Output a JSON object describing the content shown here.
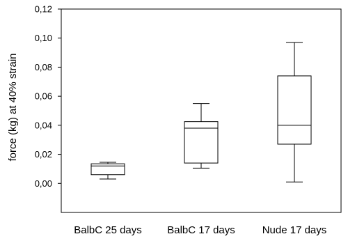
{
  "chart_data": {
    "type": "box",
    "title": "",
    "xlabel": "",
    "ylabel": "force (kg) at 40% strain",
    "ylim": [
      -0.02,
      0.12
    ],
    "yticks": [
      0.0,
      0.02,
      0.04,
      0.06,
      0.08,
      0.1,
      0.12
    ],
    "ytick_labels": [
      "0,00",
      "0,02",
      "0,04",
      "0,06",
      "0,08",
      "0,10",
      "0,12"
    ],
    "grid": false,
    "categories": [
      "BalbC 25 days",
      "BalbC 17 days",
      "Nude 17 days"
    ],
    "boxes": [
      {
        "whisker_low": 0.003,
        "q1": 0.006,
        "median": 0.012,
        "q3": 0.0135,
        "whisker_high": 0.0145
      },
      {
        "whisker_low": 0.0105,
        "q1": 0.014,
        "median": 0.038,
        "q3": 0.0425,
        "whisker_high": 0.055
      },
      {
        "whisker_low": 0.001,
        "q1": 0.027,
        "median": 0.04,
        "q3": 0.074,
        "whisker_high": 0.097
      }
    ],
    "colors": {
      "line": "#000000",
      "box_fill": "#ffffff"
    }
  }
}
